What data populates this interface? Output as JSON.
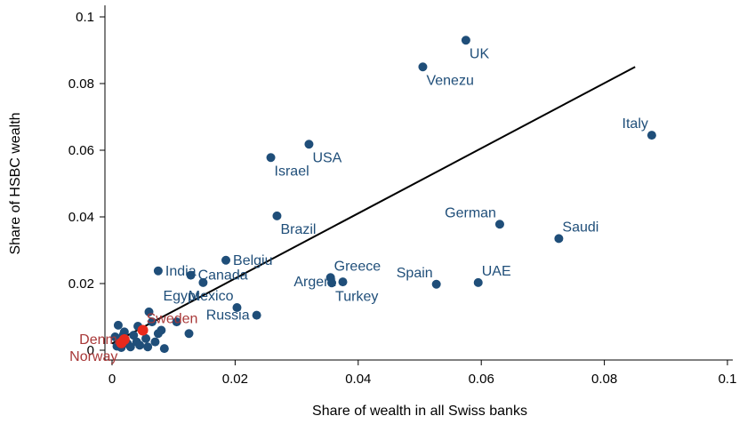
{
  "chart_data": {
    "type": "scatter",
    "xlabel": "Share of wealth in all Swiss banks",
    "ylabel": "Share of HSBC wealth",
    "xlim": [
      0,
      0.1
    ],
    "ylim": [
      0,
      0.1
    ],
    "x_ticks": [
      "0",
      "0.02",
      "0.04",
      "0.06",
      "0.08",
      "0.1"
    ],
    "y_ticks": [
      "0",
      "0.02",
      "0.04",
      "0.06",
      "0.08",
      "0.1"
    ],
    "grid": false,
    "colors": {
      "point": "#1f4e79",
      "highlight": "#e8291c",
      "highlight_label": "#a83838",
      "fit_line": "#000000"
    },
    "fit_line": {
      "x": [
        0,
        0.085
      ],
      "y": [
        0.002,
        0.085
      ]
    },
    "labeled_points": [
      {
        "label": "UK",
        "x": 0.0575,
        "y": 0.093
      },
      {
        "label": "Venezu",
        "x": 0.0505,
        "y": 0.085
      },
      {
        "label": "Italy",
        "x": 0.0877,
        "y": 0.0645
      },
      {
        "label": "USA",
        "x": 0.032,
        "y": 0.0618
      },
      {
        "label": "Israel",
        "x": 0.0258,
        "y": 0.0578
      },
      {
        "label": "Brazil",
        "x": 0.0268,
        "y": 0.0403
      },
      {
        "label": "German",
        "x": 0.063,
        "y": 0.0378
      },
      {
        "label": "Saudi",
        "x": 0.0726,
        "y": 0.0335
      },
      {
        "label": "Belgiu",
        "x": 0.0185,
        "y": 0.027
      },
      {
        "label": "India",
        "x": 0.0075,
        "y": 0.0238
      },
      {
        "label": "Canada",
        "x": 0.0128,
        "y": 0.0225
      },
      {
        "label": "Greece",
        "x": 0.0355,
        "y": 0.0218
      },
      {
        "label": "Argent",
        "x": 0.0375,
        "y": 0.0205
      },
      {
        "label": "Spain",
        "x": 0.0527,
        "y": 0.0198
      },
      {
        "label": "UAE",
        "x": 0.0595,
        "y": 0.0203
      },
      {
        "label": "Turkey",
        "x": 0.0357,
        "y": 0.0202
      },
      {
        "label": "Egypt",
        "x": 0.0148,
        "y": 0.0203
      },
      {
        "label": "Mexico",
        "x": 0.0203,
        "y": 0.0128
      },
      {
        "label": "Russia",
        "x": 0.0235,
        "y": 0.0105
      },
      {
        "label": "Sweden",
        "x": 0.005,
        "y": 0.006,
        "highlight": true
      },
      {
        "label": "Denm",
        "x": 0.002,
        "y": 0.0032,
        "highlight": true
      },
      {
        "label": "Norway",
        "x": 0.0015,
        "y": 0.0022,
        "highlight": true
      }
    ],
    "unlabeled_points": [
      {
        "x": 0.0005,
        "y": 0.004
      },
      {
        "x": 0.001,
        "y": 0.0075
      },
      {
        "x": 0.002,
        "y": 0.0055
      },
      {
        "x": 0.0025,
        "y": 0.002
      },
      {
        "x": 0.003,
        "y": 0.001
      },
      {
        "x": 0.0035,
        "y": 0.0045
      },
      {
        "x": 0.004,
        "y": 0.0025
      },
      {
        "x": 0.0045,
        "y": 0.0015
      },
      {
        "x": 0.0055,
        "y": 0.0035
      },
      {
        "x": 0.006,
        "y": 0.0115
      },
      {
        "x": 0.0065,
        "y": 0.0085
      },
      {
        "x": 0.007,
        "y": 0.0025
      },
      {
        "x": 0.0075,
        "y": 0.005
      },
      {
        "x": 0.008,
        "y": 0.006
      },
      {
        "x": 0.0085,
        "y": 0.0005
      },
      {
        "x": 0.0105,
        "y": 0.0085
      },
      {
        "x": 0.0125,
        "y": 0.005
      },
      {
        "x": 0.0008,
        "y": 0.0012
      },
      {
        "x": 0.0015,
        "y": 0.0008
      },
      {
        "x": 0.0018,
        "y": 0.0045
      },
      {
        "x": 0.0042,
        "y": 0.0072
      },
      {
        "x": 0.0058,
        "y": 0.001
      }
    ],
    "label_positions": {
      "UK": "below-right",
      "Venezu": "below-right",
      "Italy": "above-left",
      "USA": "below-right",
      "Israel": "below-right",
      "Brazil": "below-right",
      "German": "above-left",
      "Saudi": "above-right",
      "Belgiu": "right",
      "India": "right",
      "Canada": "right",
      "Greece": "above-right",
      "Argent": "left",
      "Spain": "above-left",
      "UAE": "above-right",
      "Turkey": "below-right",
      "Egypt": "below-left",
      "Mexico": "above-left",
      "Russia": "left",
      "Sweden": "above-right",
      "Denm": "left",
      "Norway": "below-left"
    }
  }
}
